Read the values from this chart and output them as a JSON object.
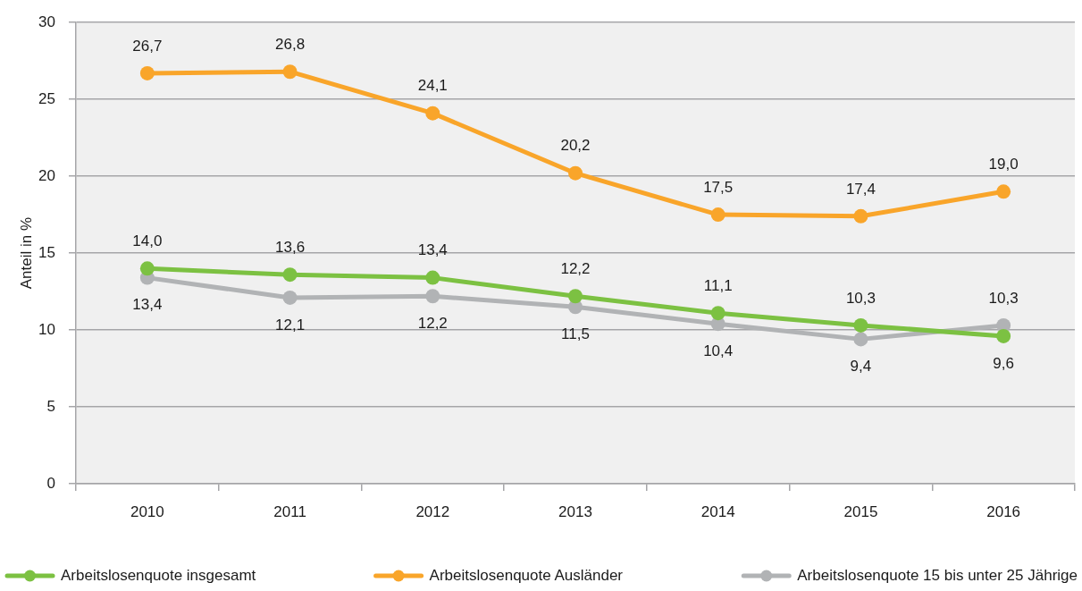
{
  "chart_data": {
    "type": "line",
    "ylabel": "Anteil in %",
    "categories": [
      "2010",
      "2011",
      "2012",
      "2013",
      "2014",
      "2015",
      "2016"
    ],
    "series": [
      {
        "name": "Arbeitslosenquote insgesamt",
        "color": "#7cc142",
        "values": [
          14.0,
          13.6,
          13.4,
          12.2,
          11.1,
          10.3,
          9.6
        ],
        "value_labels": [
          "14,0",
          "13,6",
          "13,4",
          "12,2",
          "11,1",
          "10,3",
          "9,6"
        ]
      },
      {
        "name": "Arbeitslosenquote Ausländer",
        "color": "#f9a52a",
        "values": [
          26.7,
          26.8,
          24.1,
          20.2,
          17.5,
          17.4,
          19.0
        ],
        "value_labels": [
          "26,7",
          "26,8",
          "24,1",
          "20,2",
          "17,5",
          "17,4",
          "19,0"
        ]
      },
      {
        "name": "Arbeitslosenquote 15 bis unter 25 Jährige",
        "color": "#b1b3b5",
        "values": [
          13.4,
          12.1,
          12.2,
          11.5,
          10.4,
          9.4,
          10.3
        ],
        "value_labels": [
          "13,4",
          "12,1",
          "12,2",
          "11,5",
          "10,4",
          "9,4",
          "10,3"
        ]
      }
    ],
    "ylim": [
      0,
      30
    ],
    "yticks": [
      0,
      5,
      10,
      15,
      20,
      25,
      30
    ],
    "grid": "y",
    "legend": "bottom",
    "marker": "circle",
    "line_style": "solid"
  }
}
